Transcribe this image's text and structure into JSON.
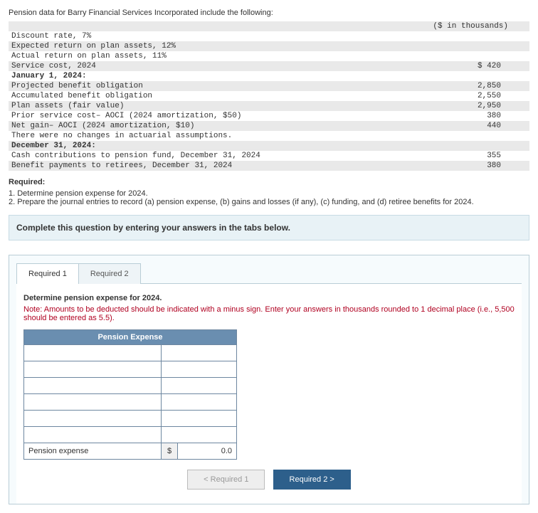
{
  "intro": "Pension data for Barry Financial Services Incorporated include the following:",
  "units": "($ in thousands)",
  "rows": [
    {
      "label": "Discount rate, 7%",
      "val": "",
      "shade": false
    },
    {
      "label": "Expected return on plan assets, 12%",
      "val": "",
      "shade": true
    },
    {
      "label": "Actual return on plan assets, 11%",
      "val": "",
      "shade": false
    },
    {
      "label": "Service cost, 2024",
      "val": "$ 420",
      "shade": true
    },
    {
      "label": "January 1, 2024:",
      "val": "",
      "shade": false,
      "bold": true
    },
    {
      "label": "Projected benefit obligation",
      "val": "2,850",
      "shade": true
    },
    {
      "label": "Accumulated benefit obligation",
      "val": "2,550",
      "shade": false
    },
    {
      "label": "Plan assets (fair value)",
      "val": "2,950",
      "shade": true
    },
    {
      "label": "Prior service cost– AOCI (2024 amortization, $50)",
      "val": "380",
      "shade": false
    },
    {
      "label": "Net gain– AOCI (2024 amortization, $10)",
      "val": "440",
      "shade": true
    },
    {
      "label": "There were no changes in actuarial assumptions.",
      "val": "",
      "shade": false
    },
    {
      "label": "December 31, 2024:",
      "val": "",
      "shade": true,
      "bold": true
    },
    {
      "label": "Cash contributions to pension fund, December 31, 2024",
      "val": "355",
      "shade": false
    },
    {
      "label": "Benefit payments to retirees, December 31, 2024",
      "val": "380",
      "shade": true
    }
  ],
  "required_h": "Required:",
  "req1": "1. Determine pension expense for 2024.",
  "req2": "2. Prepare the journal entries to record (a) pension expense, (b) gains and losses (if any), (c) funding, and (d) retiree benefits for 2024.",
  "instr": "Complete this question by entering your answers in the tabs below.",
  "tab1": "Required 1",
  "tab2": "Required 2",
  "q_text": "Determine pension expense for 2024.",
  "note": "Note: Amounts to be deducted should be indicated with a minus sign. Enter your answers in thousands rounded to 1 decimal place (i.e., 5,500 should be entered as 5.5).",
  "pe_header": "Pension Expense",
  "pe_last_label": "Pension expense",
  "pe_dollar": "$",
  "pe_zero": "0.0",
  "nav_prev": "<  Required 1",
  "nav_next": "Required 2  >"
}
